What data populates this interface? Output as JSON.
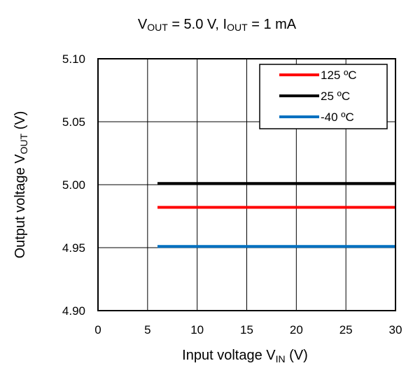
{
  "chart_data": {
    "type": "line",
    "title": {
      "p1": "V",
      "s1": "OUT",
      "p2": " = 5.0 V, I",
      "s2": "OUT",
      "p3": " = 1 mA"
    },
    "xlabel": {
      "main": "Input voltage V",
      "sub": "IN",
      "tail": " (V)"
    },
    "ylabel": {
      "main": "Output voltage V",
      "sub": "OUT",
      "tail": " (V)"
    },
    "xlim": [
      0,
      30
    ],
    "ylim": [
      4.9,
      5.1
    ],
    "x_ticks": [
      0,
      5,
      10,
      15,
      20,
      25,
      30
    ],
    "y_ticks": [
      4.9,
      4.95,
      5.0,
      5.05,
      5.1
    ],
    "x_tick_labels": [
      "0",
      "5",
      "10",
      "15",
      "20",
      "25",
      "30"
    ],
    "y_tick_labels": [
      "4.90",
      "4.95",
      "5.00",
      "5.05",
      "5.10"
    ],
    "grid": true,
    "legend_position": "top-right",
    "series": [
      {
        "name": "125 ºC",
        "color": "#ff0000",
        "x": [
          6,
          30
        ],
        "y": [
          4.982,
          4.982
        ]
      },
      {
        "name": "25 ºC",
        "color": "#000000",
        "x": [
          6,
          30
        ],
        "y": [
          5.001,
          5.001
        ]
      },
      {
        "name": "-40 ºC",
        "color": "#0070c0",
        "x": [
          6,
          30
        ],
        "y": [
          4.951,
          4.951
        ]
      }
    ]
  }
}
